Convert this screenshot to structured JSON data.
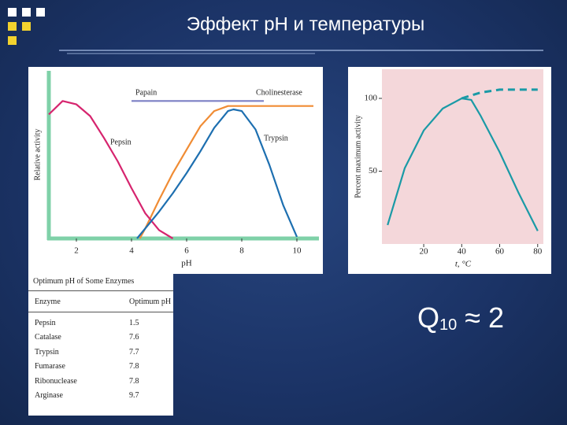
{
  "title": "Эффект рН и температуры",
  "chart_data": [
    {
      "type": "line",
      "xlabel": "pH",
      "ylabel": "Relative activity",
      "xlim": [
        1,
        10.8
      ],
      "ylim": [
        0,
        100
      ],
      "xticks": [
        2,
        4,
        6,
        8,
        10
      ],
      "series": [
        {
          "name": "Papain",
          "color": "#7b7fc4",
          "x": [
            4,
            8.8
          ],
          "values": [
            82,
            82
          ]
        },
        {
          "name": "Cholinesterase",
          "color": "#f08c34",
          "x": [
            4.3,
            4.5,
            5,
            5.5,
            6,
            6.5,
            7,
            7.5,
            8,
            9,
            10,
            10.6
          ],
          "values": [
            0,
            6,
            23,
            39,
            53,
            67,
            76,
            79,
            79,
            79,
            79,
            79
          ]
        },
        {
          "name": "Pepsin",
          "color": "#d6246e",
          "x": [
            1,
            1.5,
            2,
            2.5,
            3,
            3.5,
            4,
            4.5,
            5,
            5.5
          ],
          "values": [
            74,
            82,
            80,
            73,
            60,
            46,
            30,
            15,
            5,
            0
          ]
        },
        {
          "name": "Trypsin",
          "color": "#1d6fb0",
          "x": [
            4.2,
            5,
            5.5,
            6,
            6.5,
            7,
            7.5,
            7.7,
            8,
            8.5,
            9,
            9.5,
            10
          ],
          "values": [
            0,
            16,
            27,
            39,
            52,
            66,
            76,
            77,
            76,
            65,
            44,
            20,
            1
          ]
        }
      ]
    },
    {
      "type": "line",
      "xlabel": "t, °C",
      "ylabel": "Percent maximum activity",
      "xlim": [
        -2,
        83
      ],
      "ylim": [
        0,
        120
      ],
      "xticks": [
        20,
        40,
        60,
        80
      ],
      "yticks": [
        50,
        100
      ],
      "series": [
        {
          "color": "#1a9aa6",
          "x": [
            1,
            10,
            20,
            30,
            40,
            45,
            50,
            60,
            70,
            80
          ],
          "values": [
            13,
            52,
            78,
            93,
            100,
            99,
            88,
            63,
            35,
            9
          ]
        },
        {
          "color": "#1a9aa6",
          "dashed": true,
          "x": [
            40,
            50,
            60,
            70,
            80
          ],
          "values": [
            100,
            104,
            106,
            106,
            106
          ]
        }
      ]
    }
  ],
  "table": {
    "caption": "Optimum pH of Some Enzymes",
    "header": [
      "Enzyme",
      "Optimum pH"
    ],
    "rows": [
      [
        "Pepsin",
        "1.5"
      ],
      [
        "Catalase",
        "7.6"
      ],
      [
        "Trypsin",
        "7.7"
      ],
      [
        "Fumarase",
        "7.8"
      ],
      [
        "Ribonuclease",
        "7.8"
      ],
      [
        "Arginase",
        "9.7"
      ]
    ]
  },
  "formula": {
    "base": "Q",
    "subscript": "10",
    "rest": "≈ 2"
  }
}
